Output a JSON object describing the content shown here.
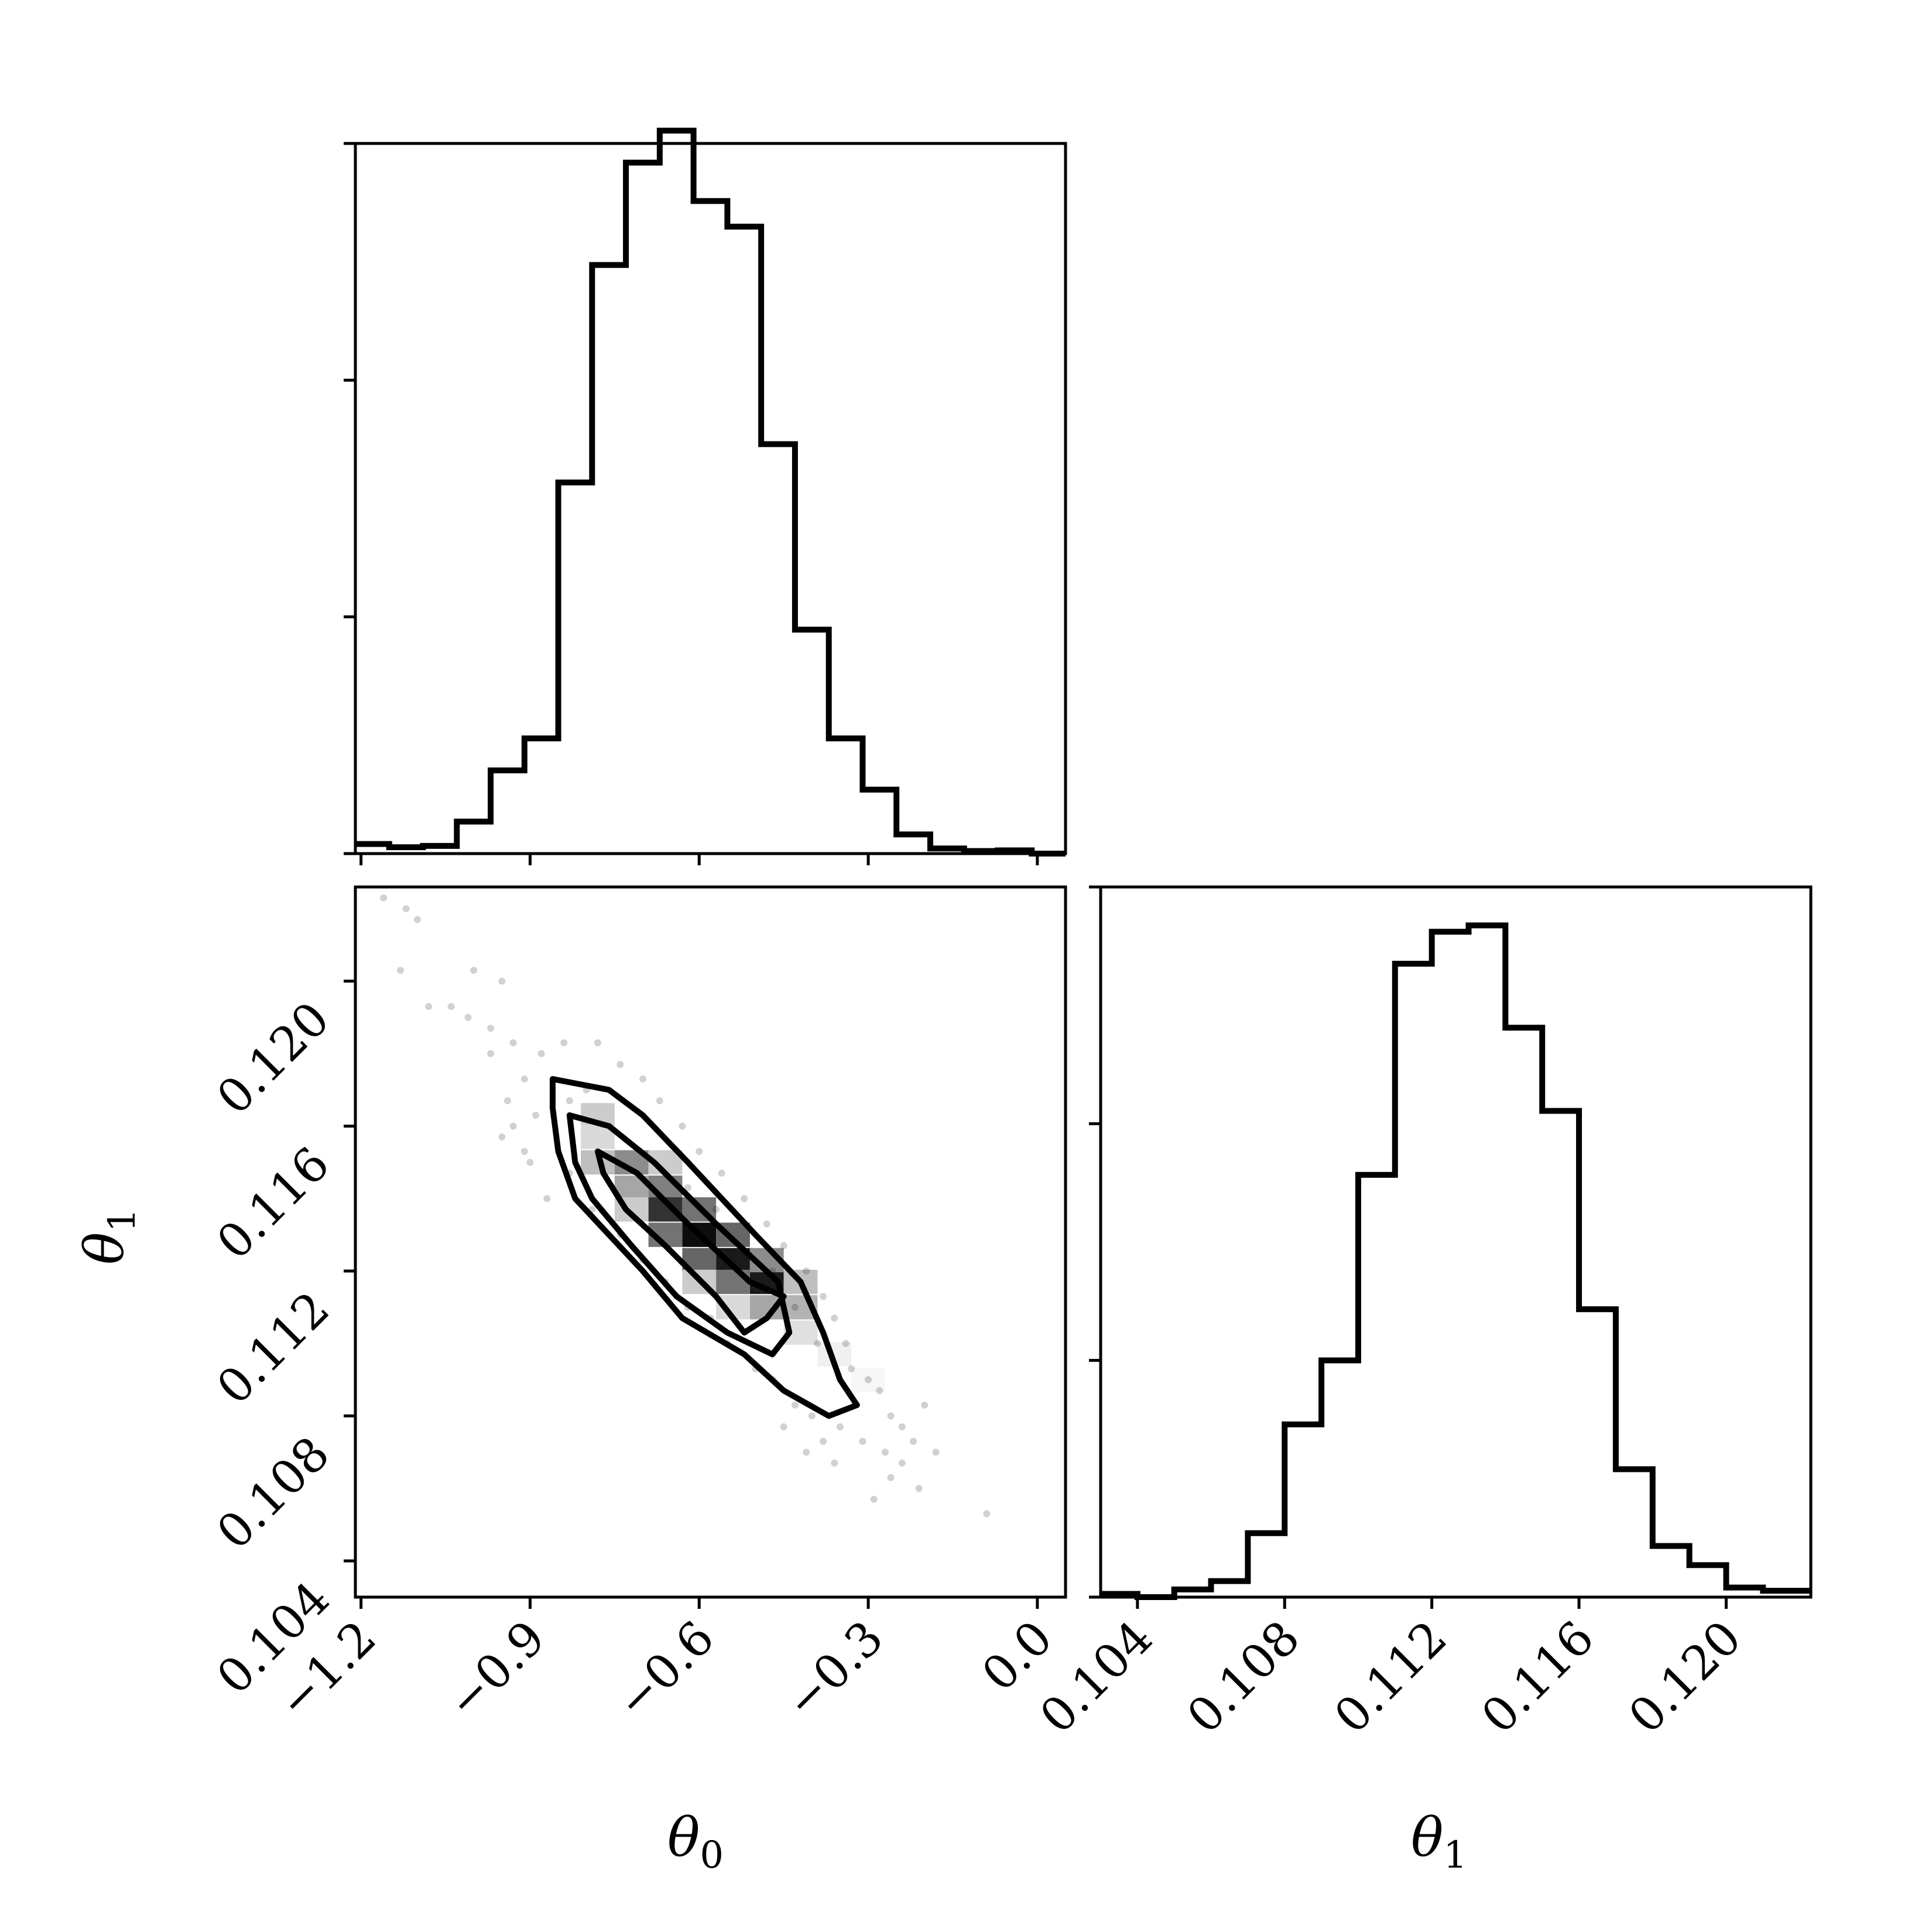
{
  "chart_data": [
    {
      "type": "histogram",
      "panel": "theta0-marginal",
      "xlim": [
        -1.21,
        0.05
      ],
      "ylim": [
        0,
        1.11
      ],
      "bin_edges": [
        -1.21,
        -1.15,
        -1.09,
        -1.03,
        -0.97,
        -0.91,
        -0.85,
        -0.79,
        -0.73,
        -0.67,
        -0.61,
        -0.55,
        -0.49,
        -0.43,
        -0.37,
        -0.31,
        -0.25,
        -0.19,
        -0.13,
        -0.07,
        -0.01,
        0.05
      ],
      "values": [
        0.015,
        0.01,
        0.012,
        0.05,
        0.13,
        0.18,
        0.58,
        0.92,
        1.08,
        1.13,
        1.02,
        0.98,
        0.64,
        0.35,
        0.18,
        0.1,
        0.03,
        0.008,
        0.004,
        0.005,
        0.0
      ],
      "x_ticks": [
        -1.2,
        -0.9,
        -0.6,
        -0.3,
        0.0
      ],
      "y_ticks": [
        0,
        0.37,
        0.74,
        1.11
      ]
    },
    {
      "type": "histogram",
      "panel": "theta1-marginal",
      "xlim": [
        0.103,
        0.1223
      ],
      "ylim": [
        0,
        1.11
      ],
      "bin_edges": [
        0.103,
        0.104,
        0.105,
        0.106,
        0.107,
        0.108,
        0.109,
        0.11,
        0.111,
        0.112,
        0.113,
        0.114,
        0.115,
        0.116,
        0.117,
        0.118,
        0.119,
        0.12,
        0.121,
        0.1223
      ],
      "values": [
        0.005,
        0.0,
        0.012,
        0.025,
        0.1,
        0.27,
        0.37,
        0.66,
        0.99,
        1.04,
        1.05,
        0.89,
        0.76,
        0.45,
        0.2,
        0.08,
        0.05,
        0.015,
        0.01
      ],
      "x_ticks": [
        0.104,
        0.108,
        0.112,
        0.116,
        0.12
      ],
      "y_ticks": [
        0,
        0.37,
        0.74,
        1.11
      ]
    },
    {
      "type": "heatmap",
      "panel": "joint-density",
      "xlim": [
        -1.21,
        0.05
      ],
      "ylim": [
        0.103,
        0.1226
      ],
      "x_ticks": [
        -1.2,
        -0.9,
        -0.6,
        -0.3,
        0.0
      ],
      "y_ticks": [
        0.104,
        0.108,
        0.112,
        0.116,
        0.12
      ],
      "cells": [
        {
          "x": -0.78,
          "y": 0.1163,
          "v": 0.2
        },
        {
          "x": -0.72,
          "y": 0.115,
          "v": 0.45
        },
        {
          "x": -0.66,
          "y": 0.1143,
          "v": 0.5
        },
        {
          "x": -0.72,
          "y": 0.1143,
          "v": 0.35
        },
        {
          "x": -0.78,
          "y": 0.115,
          "v": 0.25
        },
        {
          "x": -0.66,
          "y": 0.1137,
          "v": 0.8
        },
        {
          "x": -0.6,
          "y": 0.113,
          "v": 0.95
        },
        {
          "x": -0.54,
          "y": 0.1123,
          "v": 0.9
        },
        {
          "x": -0.48,
          "y": 0.1117,
          "v": 0.9
        },
        {
          "x": -0.6,
          "y": 0.1137,
          "v": 0.55
        },
        {
          "x": -0.54,
          "y": 0.113,
          "v": 0.6
        },
        {
          "x": -0.48,
          "y": 0.1123,
          "v": 0.45
        },
        {
          "x": -0.66,
          "y": 0.113,
          "v": 0.55
        },
        {
          "x": -0.6,
          "y": 0.1123,
          "v": 0.6
        },
        {
          "x": -0.54,
          "y": 0.1117,
          "v": 0.55
        },
        {
          "x": -0.48,
          "y": 0.111,
          "v": 0.35
        },
        {
          "x": -0.42,
          "y": 0.111,
          "v": 0.3
        },
        {
          "x": -0.42,
          "y": 0.1117,
          "v": 0.25
        },
        {
          "x": -0.42,
          "y": 0.1103,
          "v": 0.12
        },
        {
          "x": -0.36,
          "y": 0.1097,
          "v": 0.06
        },
        {
          "x": -0.3,
          "y": 0.109,
          "v": 0.03
        },
        {
          "x": -0.72,
          "y": 0.1137,
          "v": 0.2
        },
        {
          "x": -0.66,
          "y": 0.115,
          "v": 0.2
        },
        {
          "x": -0.54,
          "y": 0.111,
          "v": 0.15
        },
        {
          "x": -0.6,
          "y": 0.1117,
          "v": 0.2
        },
        {
          "x": -0.78,
          "y": 0.1157,
          "v": 0.15
        }
      ],
      "contours": [
        [
          [
            -0.86,
            0.1173
          ],
          [
            -0.76,
            0.117
          ],
          [
            -0.7,
            0.1163
          ],
          [
            -0.62,
            0.115
          ],
          [
            -0.5,
            0.113
          ],
          [
            -0.42,
            0.1117
          ],
          [
            -0.38,
            0.1103
          ],
          [
            -0.35,
            0.109
          ],
          [
            -0.32,
            0.1083
          ],
          [
            -0.37,
            0.108
          ],
          [
            -0.45,
            0.1087
          ],
          [
            -0.52,
            0.1097
          ],
          [
            -0.63,
            0.1107
          ],
          [
            -0.7,
            0.112
          ],
          [
            -0.76,
            0.113
          ],
          [
            -0.82,
            0.114
          ],
          [
            -0.85,
            0.1153
          ],
          [
            -0.86,
            0.1165
          ],
          [
            -0.86,
            0.1173
          ]
        ],
        [
          [
            -0.83,
            0.1163
          ],
          [
            -0.76,
            0.116
          ],
          [
            -0.68,
            0.115
          ],
          [
            -0.57,
            0.1133
          ],
          [
            -0.46,
            0.1117
          ],
          [
            -0.44,
            0.1103
          ],
          [
            -0.47,
            0.1097
          ],
          [
            -0.55,
            0.1103
          ],
          [
            -0.64,
            0.1113
          ],
          [
            -0.72,
            0.1127
          ],
          [
            -0.79,
            0.114
          ],
          [
            -0.82,
            0.115
          ],
          [
            -0.83,
            0.1163
          ]
        ],
        [
          [
            -0.78,
            0.1153
          ],
          [
            -0.71,
            0.1147
          ],
          [
            -0.62,
            0.1133
          ],
          [
            -0.51,
            0.1117
          ],
          [
            -0.45,
            0.1113
          ],
          [
            -0.48,
            0.1107
          ],
          [
            -0.52,
            0.1103
          ],
          [
            -0.57,
            0.1113
          ],
          [
            -0.66,
            0.1127
          ],
          [
            -0.73,
            0.1137
          ],
          [
            -0.77,
            0.1147
          ],
          [
            -0.78,
            0.1153
          ]
        ]
      ],
      "scatter": [
        [
          -1.16,
          0.1223
        ],
        [
          -1.12,
          0.122
        ],
        [
          -1.1,
          0.1217
        ],
        [
          -1.13,
          0.1203
        ],
        [
          -1.08,
          0.1193
        ],
        [
          -1.04,
          0.1193
        ],
        [
          -1.0,
          0.1203
        ],
        [
          -0.95,
          0.12
        ],
        [
          -1.01,
          0.119
        ],
        [
          -0.97,
          0.1187
        ],
        [
          -0.93,
          0.1183
        ],
        [
          -0.97,
          0.118
        ],
        [
          -0.91,
          0.1173
        ],
        [
          -0.94,
          0.1167
        ],
        [
          -0.88,
          0.118
        ],
        [
          -0.89,
          0.1163
        ],
        [
          -0.84,
          0.1183
        ],
        [
          -0.83,
          0.1167
        ],
        [
          -0.91,
          0.1153
        ],
        [
          -0.93,
          0.116
        ],
        [
          -0.9,
          0.115
        ],
        [
          -0.95,
          0.1157
        ],
        [
          -0.87,
          0.114
        ],
        [
          -0.74,
          0.1177
        ],
        [
          -0.7,
          0.1173
        ],
        [
          -0.67,
          0.1167
        ],
        [
          -0.63,
          0.116
        ],
        [
          -0.6,
          0.1153
        ],
        [
          -0.56,
          0.1147
        ],
        [
          -0.52,
          0.114
        ],
        [
          -0.48,
          0.1133
        ],
        [
          -0.45,
          0.1127
        ],
        [
          -0.41,
          0.112
        ],
        [
          -0.38,
          0.1113
        ],
        [
          -0.36,
          0.1107
        ],
        [
          -0.34,
          0.11
        ],
        [
          -0.33,
          0.1093
        ],
        [
          -0.3,
          0.109
        ],
        [
          -0.28,
          0.1087
        ],
        [
          -0.26,
          0.108
        ],
        [
          -0.24,
          0.1077
        ],
        [
          -0.22,
          0.1073
        ],
        [
          -0.27,
          0.107
        ],
        [
          -0.31,
          0.1073
        ],
        [
          -0.35,
          0.1077
        ],
        [
          -0.38,
          0.1073
        ],
        [
          -0.4,
          0.108
        ],
        [
          -0.43,
          0.1083
        ],
        [
          -0.47,
          0.109
        ],
        [
          -0.5,
          0.1093
        ],
        [
          -0.55,
          0.11
        ],
        [
          -0.58,
          0.1107
        ],
        [
          -0.62,
          0.111
        ],
        [
          -0.66,
          0.1117
        ],
        [
          -0.7,
          0.1123
        ],
        [
          -0.74,
          0.113
        ],
        [
          -0.79,
          0.1137
        ],
        [
          -0.83,
          0.1147
        ],
        [
          -0.24,
          0.1067
        ],
        [
          -0.21,
          0.106
        ],
        [
          -0.26,
          0.1063
        ],
        [
          -0.29,
          0.1057
        ],
        [
          -0.09,
          0.1053
        ],
        [
          -0.18,
          0.107
        ],
        [
          -0.2,
          0.1083
        ],
        [
          -0.41,
          0.107
        ],
        [
          -0.36,
          0.1067
        ],
        [
          -0.45,
          0.1077
        ],
        [
          -0.8,
          0.117
        ],
        [
          -0.78,
          0.1183
        ],
        [
          -0.62,
          0.1143
        ],
        [
          -0.57,
          0.1137
        ],
        [
          -0.47,
          0.112
        ],
        [
          -0.43,
          0.111
        ],
        [
          -0.39,
          0.11
        ]
      ]
    }
  ],
  "labels": {
    "x_theta0": "θ",
    "x_theta0_sub": "0",
    "x_theta1": "θ",
    "x_theta1_sub": "1",
    "y_theta1": "θ",
    "y_theta1_sub": "1"
  },
  "tick_labels": {
    "theta0": [
      "−1.2",
      "−0.9",
      "−0.6",
      "−0.3",
      "0.0"
    ],
    "theta1": [
      "0.104",
      "0.108",
      "0.112",
      "0.116",
      "0.120"
    ]
  }
}
